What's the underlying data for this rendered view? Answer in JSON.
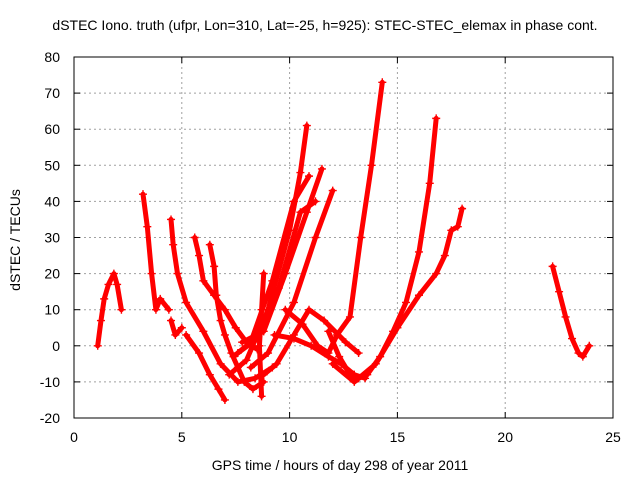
{
  "colors": {
    "series": "#ff0000",
    "grid": "#a0a0a0",
    "axis": "#000000"
  },
  "chart_data": {
    "type": "scatter",
    "title": "dSTEC Iono. truth (ufpr, Lon=310, Lat=-25, h=925): STEC-STEC_elemax in phase cont.",
    "xlabel": "GPS time / hours of day 298 of year 2011",
    "ylabel": "dSTEC  / TECUs",
    "xlim": [
      0,
      25
    ],
    "ylim": [
      -20,
      80
    ],
    "xticks": [
      0,
      5,
      10,
      15,
      20,
      25
    ],
    "yticks": [
      -20,
      -10,
      0,
      10,
      20,
      30,
      40,
      50,
      60,
      70,
      80
    ],
    "grid": true,
    "marker": "plus",
    "passes": [
      {
        "points": [
          [
            1.1,
            0
          ],
          [
            1.25,
            7
          ],
          [
            1.4,
            13
          ],
          [
            1.6,
            17
          ],
          [
            1.85,
            20
          ],
          [
            2.0,
            17
          ],
          [
            2.2,
            10
          ]
        ]
      },
      {
        "points": [
          [
            3.2,
            42
          ],
          [
            3.4,
            33
          ],
          [
            3.6,
            20
          ],
          [
            3.8,
            10
          ],
          [
            4.0,
            13
          ],
          [
            4.4,
            10
          ]
        ]
      },
      {
        "points": [
          [
            4.5,
            35
          ],
          [
            4.6,
            28
          ],
          [
            4.8,
            20
          ],
          [
            5.2,
            12
          ],
          [
            6.0,
            4
          ],
          [
            6.8,
            -5
          ],
          [
            7.6,
            -10
          ],
          [
            8.4,
            -9
          ],
          [
            9.2,
            -6
          ]
        ]
      },
      {
        "points": [
          [
            4.5,
            7
          ],
          [
            4.7,
            3
          ],
          [
            5.0,
            5
          ]
        ]
      },
      {
        "points": [
          [
            5.6,
            30
          ],
          [
            5.8,
            25
          ],
          [
            6.0,
            18
          ],
          [
            6.5,
            14
          ],
          [
            7.0,
            10
          ],
          [
            7.5,
            5
          ],
          [
            8.0,
            1
          ],
          [
            8.5,
            -1
          ]
        ]
      },
      {
        "points": [
          [
            6.3,
            28
          ],
          [
            6.5,
            22
          ],
          [
            6.6,
            14
          ],
          [
            6.8,
            7
          ],
          [
            7.0,
            3
          ],
          [
            7.3,
            -2
          ],
          [
            7.6,
            -6
          ],
          [
            7.9,
            -10
          ],
          [
            8.3,
            -12
          ],
          [
            8.8,
            -10
          ]
        ]
      },
      {
        "points": [
          [
            5.2,
            3
          ],
          [
            5.8,
            -2
          ],
          [
            6.3,
            -8
          ],
          [
            6.7,
            -12
          ],
          [
            7.0,
            -15
          ]
        ]
      },
      {
        "points": [
          [
            8.7,
            -14
          ],
          [
            8.6,
            0
          ],
          [
            8.7,
            10
          ],
          [
            8.8,
            20
          ]
        ]
      },
      {
        "points": [
          [
            7.2,
            -8
          ],
          [
            8.0,
            -4
          ],
          [
            9.0,
            10
          ],
          [
            10.0,
            32
          ],
          [
            10.5,
            48
          ],
          [
            10.8,
            61
          ]
        ]
      },
      {
        "points": [
          [
            7.4,
            -3
          ],
          [
            8.2,
            1
          ],
          [
            9.2,
            18
          ],
          [
            10.2,
            40
          ],
          [
            10.9,
            47
          ]
        ]
      },
      {
        "points": [
          [
            7.6,
            -2
          ],
          [
            8.5,
            2
          ],
          [
            9.5,
            16
          ],
          [
            10.5,
            37
          ],
          [
            11.2,
            40
          ]
        ]
      },
      {
        "points": [
          [
            7.8,
            1
          ],
          [
            8.8,
            4
          ],
          [
            9.8,
            20
          ],
          [
            10.8,
            37
          ],
          [
            11.5,
            49
          ]
        ]
      },
      {
        "points": [
          [
            8.2,
            -6
          ],
          [
            9.0,
            -2
          ],
          [
            10.2,
            12
          ],
          [
            11.2,
            30
          ],
          [
            12.0,
            43
          ]
        ]
      },
      {
        "points": [
          [
            8.8,
            -8
          ],
          [
            9.4,
            -5
          ],
          [
            10.2,
            3
          ],
          [
            10.9,
            10
          ],
          [
            11.6,
            7
          ],
          [
            12.6,
            1
          ],
          [
            13.2,
            -2
          ]
        ]
      },
      {
        "points": [
          [
            9.3,
            3
          ],
          [
            10.2,
            2
          ],
          [
            11.0,
            0
          ],
          [
            11.8,
            -3
          ],
          [
            12.4,
            -5
          ],
          [
            13.0,
            -8
          ],
          [
            13.5,
            -9
          ]
        ]
      },
      {
        "points": [
          [
            9.8,
            10
          ],
          [
            10.6,
            6
          ],
          [
            11.3,
            0
          ],
          [
            11.8,
            -2
          ],
          [
            12.2,
            3
          ],
          [
            12.8,
            8
          ],
          [
            13.3,
            30
          ],
          [
            13.8,
            50
          ],
          [
            14.3,
            73
          ]
        ]
      },
      {
        "points": [
          [
            11.8,
            4
          ],
          [
            12.3,
            -3
          ],
          [
            12.8,
            -8
          ],
          [
            13.2,
            -9
          ],
          [
            13.6,
            -8
          ],
          [
            14.2,
            -3
          ],
          [
            14.8,
            4
          ],
          [
            15.4,
            12
          ],
          [
            16.0,
            26
          ],
          [
            16.5,
            45
          ],
          [
            16.8,
            63
          ]
        ]
      },
      {
        "points": [
          [
            12.0,
            -5
          ],
          [
            13.0,
            -10
          ],
          [
            14.0,
            -5
          ],
          [
            15.0,
            5
          ],
          [
            16.0,
            14
          ],
          [
            16.8,
            20
          ],
          [
            17.2,
            25
          ],
          [
            17.5,
            32
          ],
          [
            17.8,
            33
          ],
          [
            18.0,
            38
          ]
        ]
      },
      {
        "points": [
          [
            22.2,
            22
          ],
          [
            22.5,
            15
          ],
          [
            22.8,
            8
          ],
          [
            23.1,
            2
          ],
          [
            23.4,
            -2
          ],
          [
            23.6,
            -3
          ],
          [
            23.9,
            0
          ]
        ]
      }
    ]
  }
}
